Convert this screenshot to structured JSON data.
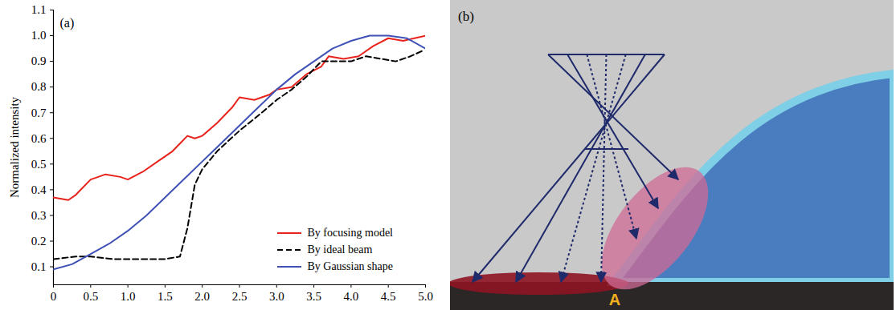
{
  "chart_data": {
    "type": "line",
    "annotations": [
      "(a)"
    ],
    "ylabel": "Normalized intensity",
    "xlim": [
      0,
      5
    ],
    "ylim": [
      0.03,
      1.1
    ],
    "xticks": [
      0,
      0.5,
      {
        "value": 1,
        "label": "1.0"
      },
      1.5,
      {
        "value": 2,
        "label": "2.0"
      },
      2.5,
      {
        "value": 3,
        "label": "3.0"
      },
      3.5,
      {
        "value": 4,
        "label": "4.0"
      },
      4.5,
      {
        "value": 5,
        "label": "5.0"
      }
    ],
    "yticks": [
      0.1,
      0.2,
      0.3,
      0.4,
      0.5,
      0.6,
      0.7,
      0.8,
      0.9,
      {
        "value": 1,
        "label": "1.0"
      },
      1.1
    ],
    "legend": "bottom-right",
    "series": [
      {
        "name": "By focusing model",
        "color": "#e8231c",
        "line_style": "solid",
        "x": [
          0,
          0.2,
          0.3,
          0.5,
          0.7,
          0.9,
          1.0,
          1.2,
          1.4,
          1.6,
          1.7,
          1.8,
          1.9,
          2.0,
          2.2,
          2.4,
          2.5,
          2.7,
          2.9,
          3.0,
          3.2,
          3.4,
          3.6,
          3.7,
          3.9,
          4.1,
          4.3,
          4.5,
          4.7,
          4.85,
          5.0
        ],
        "values": [
          0.37,
          0.36,
          0.38,
          0.44,
          0.46,
          0.45,
          0.44,
          0.47,
          0.51,
          0.55,
          0.58,
          0.61,
          0.6,
          0.61,
          0.66,
          0.72,
          0.76,
          0.75,
          0.77,
          0.79,
          0.8,
          0.85,
          0.88,
          0.92,
          0.91,
          0.92,
          0.96,
          0.99,
          0.98,
          0.99,
          1.0
        ]
      },
      {
        "name": "By ideal beam",
        "color": "#000000",
        "line_style": "dashed",
        "x": [
          0,
          0.3,
          0.5,
          0.8,
          1.0,
          1.3,
          1.5,
          1.7,
          1.8,
          1.9,
          2.0,
          2.2,
          2.5,
          2.8,
          3.0,
          3.2,
          3.4,
          3.5,
          3.6,
          3.8,
          4.0,
          4.2,
          4.4,
          4.6,
          4.8,
          4.95
        ],
        "values": [
          0.13,
          0.14,
          0.14,
          0.13,
          0.13,
          0.13,
          0.13,
          0.14,
          0.25,
          0.42,
          0.48,
          0.55,
          0.63,
          0.7,
          0.75,
          0.79,
          0.84,
          0.87,
          0.9,
          0.9,
          0.9,
          0.92,
          0.91,
          0.9,
          0.92,
          0.94
        ]
      },
      {
        "name": "By Gaussian shape",
        "color": "#3f51b5",
        "line_style": "solid",
        "x": [
          0,
          0.25,
          0.5,
          0.75,
          1.0,
          1.25,
          1.5,
          1.75,
          2.0,
          2.25,
          2.5,
          2.75,
          3.0,
          3.25,
          3.5,
          3.75,
          4.0,
          4.25,
          4.5,
          4.75,
          5.0
        ],
        "values": [
          0.09,
          0.11,
          0.15,
          0.19,
          0.24,
          0.3,
          0.37,
          0.44,
          0.51,
          0.58,
          0.65,
          0.72,
          0.79,
          0.85,
          0.9,
          0.95,
          0.98,
          1.0,
          1.0,
          0.99,
          0.95
        ]
      }
    ]
  },
  "diagram": {
    "panel_label": "(b)",
    "point_label": "A"
  }
}
